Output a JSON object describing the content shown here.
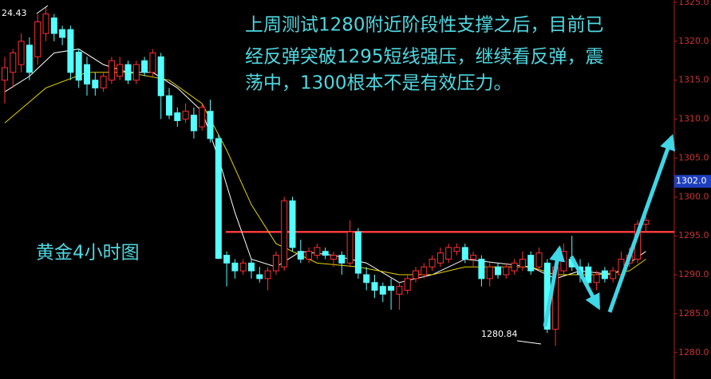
{
  "chart_data": {
    "type": "candlestick",
    "title_lines": [
      "上周测试1280附近阶段性支撑之后，目前已",
      "经反弹突破1295短线强压，继续看反弹，震",
      "荡中，1300根本不是有效压力。"
    ],
    "chart_label": "黄金4小时图",
    "up_color": "#ff3030",
    "down_color": "#54ffff",
    "ohlc": [
      [
        1315,
        1318,
        1312,
        1316.6
      ],
      [
        1316,
        1319,
        1314,
        1318.5
      ],
      [
        1317,
        1321,
        1316,
        1320
      ],
      [
        1319.5,
        1320.5,
        1315,
        1316
      ],
      [
        1318,
        1323.5,
        1317,
        1322.5
      ],
      [
        1321,
        1324.43,
        1320,
        1323.5
      ],
      [
        1323,
        1323.5,
        1320,
        1321
      ],
      [
        1321.5,
        1322,
        1319.5,
        1320.5
      ],
      [
        1321.5,
        1322,
        1315,
        1316
      ],
      [
        1318.6,
        1319,
        1314,
        1315
      ],
      [
        1317,
        1318,
        1313,
        1314.5
      ],
      [
        1315,
        1316,
        1313,
        1314
      ],
      [
        1314,
        1316,
        1313.5,
        1315.5
      ],
      [
        1315,
        1318,
        1314.5,
        1317.5
      ],
      [
        1315.5,
        1318,
        1315,
        1317
      ],
      [
        1317,
        1317.5,
        1314.5,
        1315
      ],
      [
        1315,
        1317.5,
        1314.5,
        1317
      ],
      [
        1317.5,
        1318,
        1315.5,
        1316
      ],
      [
        1316,
        1319,
        1315.5,
        1318.5
      ],
      [
        1318,
        1318.5,
        1310,
        1313
      ],
      [
        1313,
        1314,
        1310,
        1310.5
      ],
      [
        1310.8,
        1311.5,
        1309,
        1309.8
      ],
      [
        1310,
        1312,
        1309.5,
        1311
      ],
      [
        1310.5,
        1311.5,
        1307.5,
        1308.5
      ],
      [
        1309,
        1312,
        1308.5,
        1311.5
      ],
      [
        1311,
        1312.5,
        1307,
        1307.5
      ],
      [
        1307.5,
        1308,
        1292,
        1292.1
      ],
      [
        1292.5,
        1293,
        1288.5,
        1291.5
      ],
      [
        1291.5,
        1292,
        1289.5,
        1290.5
      ],
      [
        1290.5,
        1292,
        1290,
        1291.5
      ],
      [
        1291.5,
        1292,
        1289.5,
        1290.5
      ],
      [
        1290,
        1291,
        1289,
        1289.5
      ],
      [
        1289.5,
        1291,
        1288,
        1290.5
      ],
      [
        1290.5,
        1293,
        1290,
        1292.5
      ],
      [
        1291,
        1300,
        1290.5,
        1299.5
      ],
      [
        1299.5,
        1300,
        1293,
        1293.5
      ],
      [
        1293,
        1294.5,
        1291.5,
        1292
      ],
      [
        1292,
        1293.5,
        1291.5,
        1293
      ],
      [
        1292.5,
        1294,
        1292,
        1293.5
      ],
      [
        1293,
        1293.5,
        1292,
        1292.5
      ],
      [
        1292,
        1293,
        1291,
        1292.5
      ],
      [
        1292.5,
        1293,
        1290,
        1291.5
      ],
      [
        1291.5,
        1297,
        1291,
        1295.5
      ],
      [
        1295.5,
        1296,
        1289.5,
        1290.2
      ],
      [
        1290,
        1291,
        1288,
        1289
      ],
      [
        1289,
        1290,
        1287,
        1288
      ],
      [
        1288.5,
        1289,
        1286.5,
        1287.5
      ],
      [
        1288.5,
        1289.5,
        1285.5,
        1288
      ],
      [
        1287.5,
        1289,
        1285.5,
        1288.5
      ],
      [
        1288,
        1290,
        1287.5,
        1289.5
      ],
      [
        1289.5,
        1291,
        1289,
        1290.5
      ],
      [
        1290,
        1291.5,
        1289.5,
        1291
      ],
      [
        1291,
        1292.5,
        1290.5,
        1292
      ],
      [
        1291.5,
        1293.5,
        1291,
        1292.8
      ],
      [
        1292,
        1294,
        1291.5,
        1293.5
      ],
      [
        1293,
        1294,
        1292.5,
        1293.5
      ],
      [
        1293.5,
        1294,
        1291.5,
        1292
      ],
      [
        1292,
        1293,
        1291,
        1292.5
      ],
      [
        1292,
        1292.5,
        1288.5,
        1289.5
      ],
      [
        1289.5,
        1291.5,
        1288.5,
        1291
      ],
      [
        1291,
        1291.5,
        1289.5,
        1290
      ],
      [
        1290,
        1291.5,
        1289.5,
        1291
      ],
      [
        1290.5,
        1292,
        1290,
        1291.5
      ],
      [
        1291,
        1293,
        1290.5,
        1292
      ],
      [
        1292.5,
        1293,
        1290,
        1290.5
      ],
      [
        1291,
        1293.5,
        1290.5,
        1292.8
      ],
      [
        1291.5,
        1292,
        1282.5,
        1283
      ],
      [
        1283,
        1291.5,
        1280.84,
        1291
      ],
      [
        1290.5,
        1294,
        1290,
        1293
      ],
      [
        1292,
        1295,
        1290.5,
        1291
      ],
      [
        1291,
        1292,
        1289,
        1290
      ],
      [
        1291,
        1291.5,
        1288.5,
        1289
      ],
      [
        1289,
        1290.5,
        1288,
        1290
      ],
      [
        1290.5,
        1291,
        1289,
        1289.5
      ],
      [
        1289.5,
        1291,
        1289,
        1290.5
      ],
      [
        1290,
        1293,
        1289.5,
        1292
      ],
      [
        1291.5,
        1293.5,
        1291,
        1292.5
      ],
      [
        1292,
        1297,
        1291.5,
        1296.5
      ],
      [
        1296.5,
        1297.5,
        1295.5,
        1297
      ]
    ],
    "series": [
      {
        "color": "#ffffff",
        "x": [
          0,
          3,
          6,
          9,
          12,
          15,
          18,
          21,
          24,
          26,
          28,
          30,
          33,
          36,
          40,
          44,
          48,
          52,
          56,
          60,
          64,
          67,
          70,
          74,
          78
        ],
        "values": [
          1313.5,
          1315.5,
          1318.5,
          1319,
          1317,
          1316,
          1316,
          1314,
          1311,
          1305,
          1298,
          1292,
          1291,
          1293,
          1292.5,
          1291.5,
          1289,
          1290,
          1292,
          1291.5,
          1291,
          1289.5,
          1290.5,
          1290,
          1293
        ]
      },
      {
        "color": "#e6d200",
        "x": [
          0,
          5,
          10,
          15,
          20,
          24,
          27,
          30,
          33,
          38,
          43,
          48,
          52,
          56,
          60,
          64,
          67,
          72,
          76,
          78
        ],
        "values": [
          1309.5,
          1314,
          1316,
          1316,
          1315,
          1312,
          1306,
          1299,
          1294,
          1291.5,
          1291,
          1290,
          1290,
          1291,
          1291,
          1291,
          1290,
          1290,
          1290.5,
          1292
        ]
      }
    ],
    "hline": {
      "value": 1295.5,
      "color": "#ff3b3b"
    },
    "current_price": {
      "value": 1302,
      "label": "1302.0"
    },
    "annotations": [
      "24.43",
      "1280.84"
    ],
    "ylim": [
      1276.6,
      1325.3
    ],
    "yticks": [
      {
        "value": 1280,
        "label": "1280.0"
      },
      {
        "value": 1285,
        "label": "1285.0"
      },
      {
        "value": 1290,
        "label": "1290.0"
      },
      {
        "value": 1295,
        "label": "1295.0"
      },
      {
        "value": 1300,
        "label": "1300.0"
      },
      {
        "value": 1305,
        "label": "1305.0"
      },
      {
        "value": 1310,
        "label": "1310.0"
      },
      {
        "value": 1315,
        "label": "1315.0"
      },
      {
        "value": 1320,
        "label": "1320.0"
      },
      {
        "value": 1325,
        "label": "1325.0"
      }
    ]
  }
}
